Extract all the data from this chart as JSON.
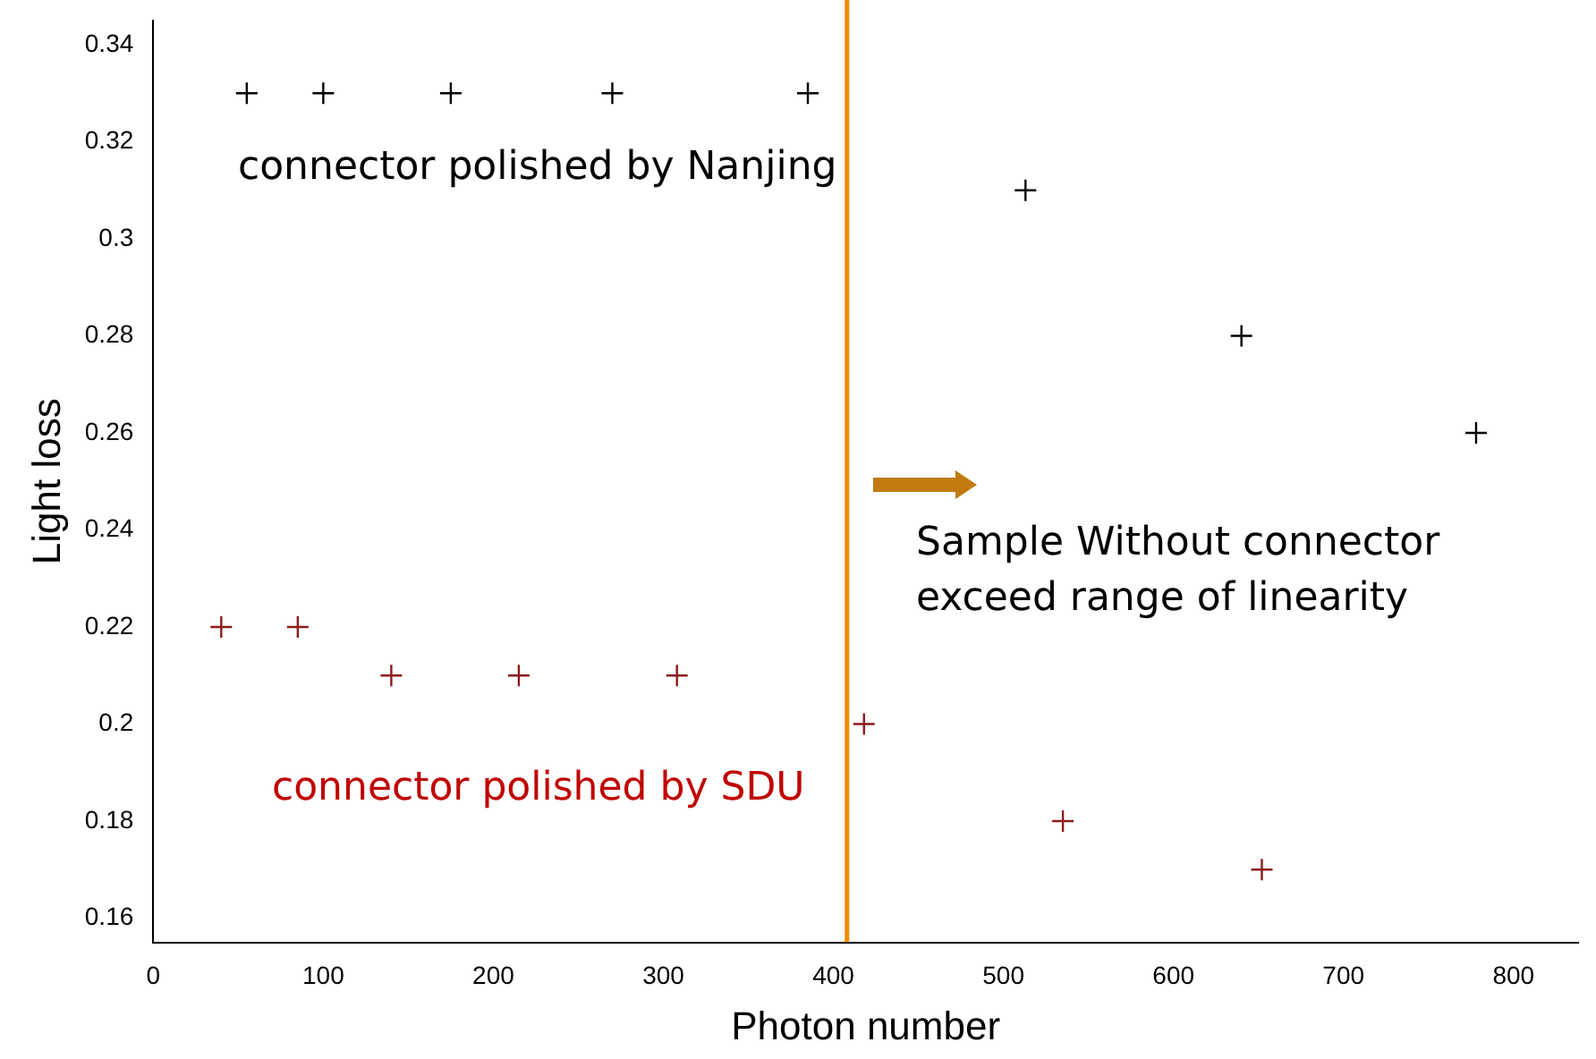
{
  "chart_data": {
    "type": "scatter",
    "xlabel": "Photon number",
    "ylabel": "Light loss",
    "xlim": [
      0,
      838
    ],
    "xticks": [
      0,
      100,
      200,
      300,
      400,
      500,
      600,
      700,
      800
    ],
    "ylim": [
      0.155,
      0.345
    ],
    "yticks": [
      0.16,
      0.18,
      0.2,
      0.22,
      0.24,
      0.26,
      0.28,
      0.3,
      0.32,
      0.34
    ],
    "grid": false,
    "legend": false,
    "series": [
      {
        "color": "#000000",
        "marker": "cross",
        "x": [
          55,
          100,
          175,
          270,
          385,
          513,
          640,
          778
        ],
        "values": [
          0.33,
          0.33,
          0.33,
          0.33,
          0.33,
          0.31,
          0.28,
          0.26
        ]
      },
      {
        "color": "#8b1a1a",
        "marker": "cross",
        "x": [
          40,
          85,
          140,
          215,
          308,
          418,
          535,
          652
        ],
        "values": [
          0.22,
          0.22,
          0.21,
          0.21,
          0.21,
          0.2,
          0.18,
          0.17
        ]
      }
    ],
    "ref_lines": [
      {
        "axis": "x",
        "value": 408,
        "color": "#f08c00"
      }
    ],
    "annotations": [
      "connector polished by Nanjing",
      "Sample Without connector exceed range of linearity",
      "connector polished by SDU"
    ]
  }
}
